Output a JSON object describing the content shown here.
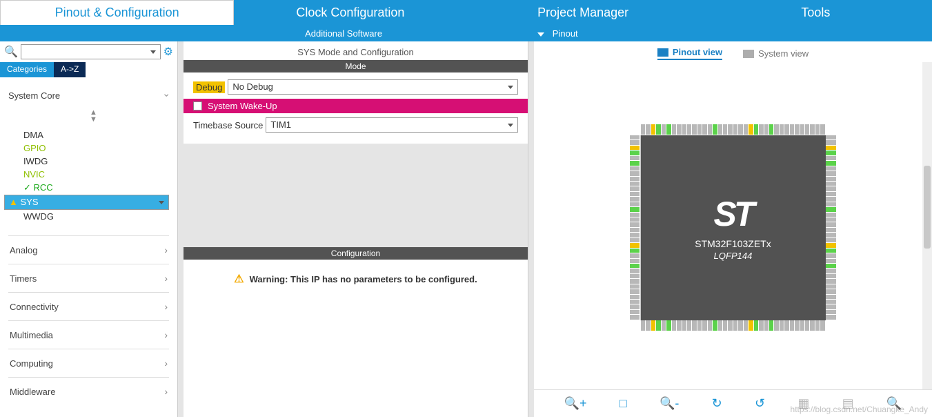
{
  "colors": {
    "primary": "#1b95d6",
    "dark_tab": "#0b2a55",
    "band": "#535353",
    "magenta": "#d60f74",
    "highlight": "#f2c200",
    "sel": "#37aee3",
    "pin_green": "#5bd24a"
  },
  "top_tabs": {
    "items": [
      "Pinout & Configuration",
      "Clock Configuration",
      "Project Manager",
      "Tools"
    ],
    "active_index": 0
  },
  "sub_bar": {
    "additional_software": "Additional Software",
    "pinout": "Pinout"
  },
  "left": {
    "cat_tabs": {
      "a": "Categories",
      "b": "A->Z"
    },
    "system_core": {
      "label": "System Core",
      "items": [
        {
          "label": "DMA",
          "cls": ""
        },
        {
          "label": "GPIO",
          "cls": "c-gpio"
        },
        {
          "label": "IWDG",
          "cls": ""
        },
        {
          "label": "NVIC",
          "cls": "c-nvic"
        },
        {
          "label": "RCC",
          "cls": "c-rcc"
        },
        {
          "label": "SYS",
          "cls": "sel"
        },
        {
          "label": "WWDG",
          "cls": ""
        }
      ]
    },
    "categories": [
      "Analog",
      "Timers",
      "Connectivity",
      "Multimedia",
      "Computing",
      "Middleware"
    ]
  },
  "middle": {
    "title": "SYS Mode and Configuration",
    "bands": {
      "mode": "Mode",
      "config": "Configuration"
    },
    "debug": {
      "label": "Debug",
      "value": "No Debug"
    },
    "wakeup": {
      "label": "System Wake-Up",
      "checked": false
    },
    "timebase": {
      "label": "Timebase Source",
      "value": "TIM1"
    },
    "warning": {
      "text": "Warning: This IP has no parameters to be configured."
    }
  },
  "right": {
    "view_tabs": {
      "pinout": "Pinout view",
      "system": "System view"
    },
    "chip": {
      "part": "STM32F103ZETx",
      "package": "LQFP144",
      "pins_per_side": 36
    },
    "toolbar_icons": [
      "zoom-in-icon",
      "fit-icon",
      "zoom-out-icon",
      "rotate-cw-icon",
      "rotate-ccw-icon",
      "grid-icon",
      "stack-icon",
      "search-icon"
    ]
  },
  "watermark": "https://blog.csdn.net/Chuangke_Andy"
}
